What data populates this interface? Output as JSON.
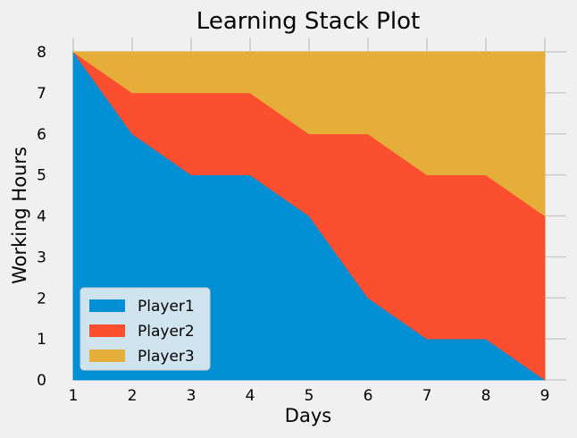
{
  "chart_data": {
    "type": "area",
    "stacked": true,
    "title": "Learning Stack Plot",
    "xlabel": "Days",
    "ylabel": "Working Hours",
    "x": [
      1,
      2,
      3,
      4,
      5,
      6,
      7,
      8,
      9
    ],
    "xlim": [
      1,
      9
    ],
    "ylim": [
      0,
      8
    ],
    "xticks": [
      1,
      2,
      3,
      4,
      5,
      6,
      7,
      8,
      9
    ],
    "yticks": [
      0,
      1,
      2,
      3,
      4,
      5,
      6,
      7,
      8
    ],
    "grid": true,
    "legend_position": "lower-left",
    "series": [
      {
        "name": "Player1",
        "color": "#008fd5",
        "values": [
          8,
          6,
          5,
          5,
          4,
          2,
          1,
          1,
          0
        ]
      },
      {
        "name": "Player2",
        "color": "#fc4f30",
        "values": [
          0,
          1,
          2,
          2,
          2,
          4,
          4,
          4,
          4
        ]
      },
      {
        "name": "Player3",
        "color": "#e5ae38",
        "values": [
          0,
          1,
          1,
          1,
          2,
          2,
          3,
          3,
          4
        ]
      }
    ]
  }
}
